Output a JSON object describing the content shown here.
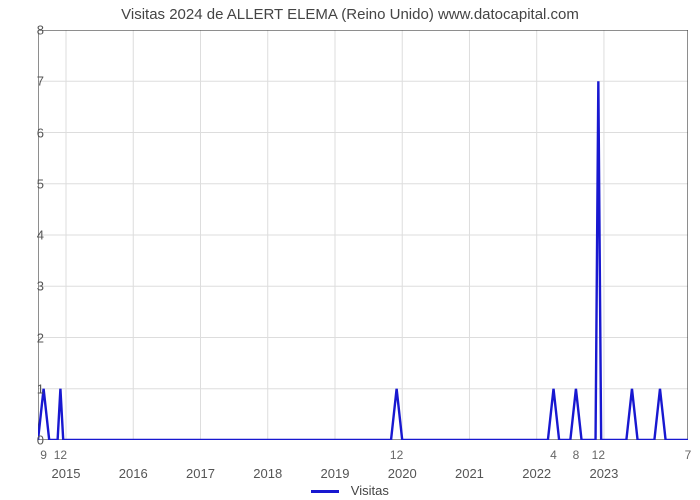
{
  "chart": {
    "type": "line",
    "title": "Visitas 2024 de ALLERT ELEMA (Reino Unido) www.datocapital.com",
    "title_fontsize": 15,
    "title_color": "#444444",
    "background_color": "#ffffff",
    "plot_border_color": "#444444",
    "grid_color": "#dddddd",
    "axis_tick_color": "#444444",
    "axis_label_color": "#555555",
    "axis_label_fontsize": 13,
    "line_color": "#1818d0",
    "line_width": 2.4,
    "ylim": [
      0,
      8
    ],
    "yticks": [
      0,
      1,
      2,
      3,
      4,
      5,
      6,
      7,
      8
    ],
    "x_domain_months": {
      "start": 8,
      "end": 124
    },
    "x_year_ticks": [
      {
        "label": "2015",
        "month_index": 13
      },
      {
        "label": "2016",
        "month_index": 25
      },
      {
        "label": "2017",
        "month_index": 37
      },
      {
        "label": "2018",
        "month_index": 49
      },
      {
        "label": "2019",
        "month_index": 61
      },
      {
        "label": "2020",
        "month_index": 73
      },
      {
        "label": "2021",
        "month_index": 85
      },
      {
        "label": "2022",
        "month_index": 97
      },
      {
        "label": "2023",
        "month_index": 109
      }
    ],
    "x_month_ticks": [
      {
        "label": "9",
        "month_index": 9
      },
      {
        "label": "12",
        "month_index": 12
      },
      {
        "label": "12",
        "month_index": 72
      },
      {
        "label": "4",
        "month_index": 100
      },
      {
        "label": "8",
        "month_index": 104
      },
      {
        "label": "12",
        "month_index": 108
      },
      {
        "label": "7",
        "month_index": 124
      }
    ],
    "series": [
      {
        "name": "Visitas",
        "color": "#1818d0",
        "points": [
          {
            "m": 8,
            "v": 0
          },
          {
            "m": 9,
            "v": 1
          },
          {
            "m": 10,
            "v": 0
          },
          {
            "m": 11.5,
            "v": 0
          },
          {
            "m": 12,
            "v": 1
          },
          {
            "m": 12.5,
            "v": 0
          },
          {
            "m": 71,
            "v": 0
          },
          {
            "m": 72,
            "v": 1
          },
          {
            "m": 73,
            "v": 0
          },
          {
            "m": 99,
            "v": 0
          },
          {
            "m": 100,
            "v": 1
          },
          {
            "m": 101,
            "v": 0
          },
          {
            "m": 103,
            "v": 0
          },
          {
            "m": 104,
            "v": 1
          },
          {
            "m": 105,
            "v": 0
          },
          {
            "m": 107.5,
            "v": 0
          },
          {
            "m": 108,
            "v": 7
          },
          {
            "m": 108.5,
            "v": 0
          },
          {
            "m": 113,
            "v": 0
          },
          {
            "m": 114,
            "v": 1
          },
          {
            "m": 115,
            "v": 0
          },
          {
            "m": 118,
            "v": 0
          },
          {
            "m": 119,
            "v": 1
          },
          {
            "m": 120,
            "v": 0
          },
          {
            "m": 124,
            "v": 0
          }
        ]
      }
    ],
    "legend": {
      "label": "Visitas",
      "fontsize": 13,
      "color": "#444444"
    }
  }
}
